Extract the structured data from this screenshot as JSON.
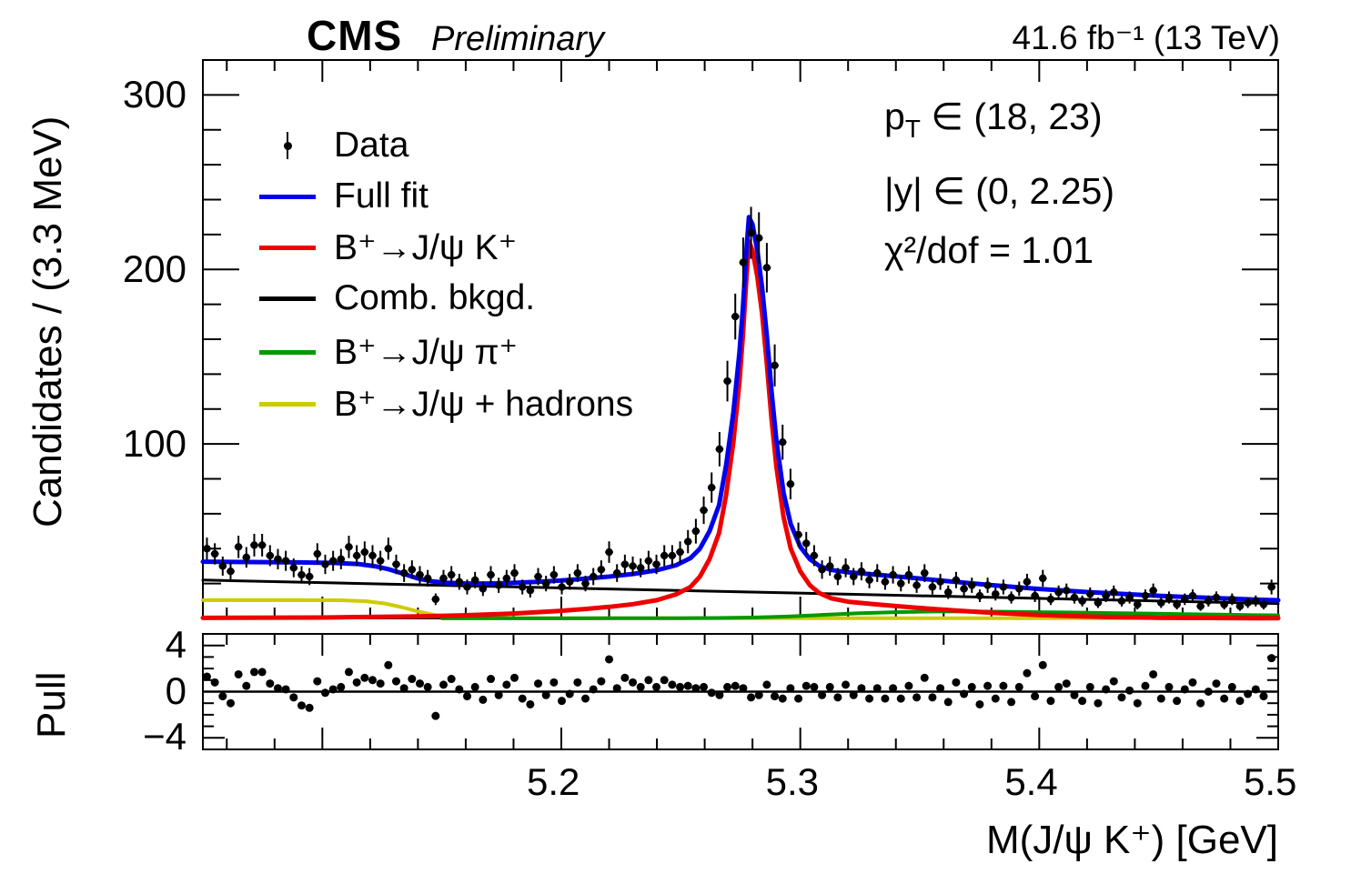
{
  "header": {
    "experiment": "CMS",
    "status": "Preliminary",
    "luminosity": "41.6 fb⁻¹ (13 TeV)"
  },
  "annotations": {
    "pt_prefix": "p",
    "pt_sub": "T",
    "pt_range": " ∈ (18, 23)",
    "rapidity": "|y| ∈ (0, 2.25)",
    "chi2": "χ²/dof = 1.01"
  },
  "legend": [
    {
      "label": "Data",
      "type": "marker",
      "color": "#000000"
    },
    {
      "label": "Full fit",
      "type": "line",
      "color": "#0000ee"
    },
    {
      "label": "B⁺→J/ψ K⁺",
      "type": "line",
      "color": "#ee0000"
    },
    {
      "label": "Comb. bkgd.",
      "type": "line",
      "color": "#000000"
    },
    {
      "label": "B⁺→J/ψ π⁺",
      "type": "line",
      "color": "#009900"
    },
    {
      "label": "B⁺→J/ψ + hadrons",
      "type": "line",
      "color": "#cccc00"
    }
  ],
  "axes": {
    "main_y_label": "Candidates / (3.3 MeV)",
    "main_y_ticks": [
      {
        "v": 100,
        "label": "100"
      },
      {
        "v": 200,
        "label": "200"
      },
      {
        "v": 300,
        "label": "300"
      }
    ],
    "pull_y_label": "Pull",
    "pull_y_ticks": [
      {
        "v": -4,
        "label": "−4"
      },
      {
        "v": 0,
        "label": "0"
      },
      {
        "v": 4,
        "label": "4"
      }
    ],
    "x_ticks": [
      {
        "v": 5.2,
        "label": "5.2"
      },
      {
        "v": 5.3,
        "label": "5.3"
      },
      {
        "v": 5.4,
        "label": "5.4"
      },
      {
        "v": 5.5,
        "label": "5.5"
      }
    ],
    "x_label": "M(J/ψ K⁺) [GeV]"
  },
  "chart_data": {
    "type": "line+scatter",
    "xlabel": "M(J/psi K+) [GeV]",
    "ylabel": "Candidates / (3.3 MeV)",
    "pull_label": "Pull",
    "x_range": [
      5.05,
      5.5
    ],
    "main_ylim": [
      0,
      320
    ],
    "pull_ylim": [
      -5,
      5
    ],
    "x_start": 5.0517,
    "bin_width": 0.0033,
    "data_counts": [
      40,
      37,
      30,
      27,
      41,
      35,
      42,
      42,
      36,
      34,
      33,
      29,
      25,
      24,
      37,
      31,
      33,
      34,
      41,
      36,
      38,
      36,
      33,
      40,
      31,
      26,
      28,
      25,
      23,
      11,
      23,
      25,
      21,
      18,
      22,
      17,
      25,
      19,
      23,
      26,
      18,
      16,
      24,
      20,
      25,
      18,
      21,
      26,
      20,
      24,
      28,
      38,
      26,
      31,
      30,
      29,
      33,
      31,
      36,
      36,
      38,
      44,
      50,
      62,
      75,
      97,
      136,
      173,
      204,
      221,
      218,
      201,
      145,
      101,
      77,
      48,
      43,
      36,
      28,
      30,
      24,
      29,
      24,
      27,
      22,
      26,
      21,
      25,
      20,
      25,
      19,
      26,
      18,
      21,
      15,
      22,
      17,
      19,
      13,
      19,
      14,
      18,
      12,
      17,
      21,
      13,
      23,
      11,
      15,
      16,
      12,
      10,
      14,
      9,
      13,
      15,
      10,
      12,
      8,
      13,
      16,
      9,
      12,
      8,
      11,
      13,
      7,
      10,
      12,
      8,
      11,
      7,
      9,
      10,
      8,
      18
    ],
    "pulls": [
      1.3,
      0.8,
      -0.4,
      -1.0,
      1.5,
      0.5,
      1.7,
      1.7,
      0.7,
      0.3,
      0.2,
      -0.5,
      -1.2,
      -1.4,
      0.9,
      -0.1,
      0.2,
      0.4,
      1.7,
      0.8,
      1.2,
      1.0,
      0.7,
      2.3,
      0.9,
      0.3,
      1.1,
      0.7,
      0.4,
      -2.1,
      0.6,
      1.1,
      0.2,
      -0.4,
      0.4,
      -0.7,
      1.1,
      -0.3,
      0.6,
      1.2,
      -0.6,
      -1.1,
      0.7,
      -0.3,
      0.8,
      -0.8,
      -0.2,
      0.8,
      -0.6,
      0.2,
      0.9,
      2.8,
      0.3,
      1.2,
      0.8,
      0.4,
      1.0,
      0.4,
      1.0,
      0.6,
      0.4,
      0.5,
      0.3,
      0.4,
      -0.1,
      -0.3,
      0.4,
      0.5,
      0.3,
      -0.5,
      -0.3,
      0.6,
      -0.4,
      -0.6,
      0.3,
      -0.6,
      0.5,
      0.4,
      -0.3,
      0.4,
      -0.5,
      0.6,
      -0.3,
      0.3,
      -0.6,
      0.3,
      -0.6,
      0.3,
      -0.6,
      0.5,
      -0.5,
      1.2,
      -0.5,
      0.3,
      -0.9,
      0.8,
      -0.2,
      0.4,
      -1.1,
      0.5,
      -0.6,
      0.5,
      -0.9,
      0.4,
      1.6,
      -0.4,
      2.3,
      -0.8,
      0.4,
      0.7,
      -0.3,
      -0.8,
      0.4,
      -1.0,
      0.2,
      0.9,
      -0.5,
      0.1,
      -1.0,
      0.5,
      1.5,
      -0.6,
      0.4,
      -0.8,
      0.2,
      0.8,
      -1.0,
      0.0,
      0.7,
      -0.6,
      0.4,
      -0.8,
      -0.2,
      0.2,
      -0.4,
      2.9
    ],
    "curves": {
      "full_fit": {
        "name": "Full fit",
        "color": "#0000ee",
        "width": 5,
        "points": [
          [
            5.05,
            32.5
          ],
          [
            5.07,
            32.3
          ],
          [
            5.09,
            32.1
          ],
          [
            5.105,
            31.8
          ],
          [
            5.115,
            31.2
          ],
          [
            5.122,
            29.9
          ],
          [
            5.128,
            28.1
          ],
          [
            5.134,
            25.6
          ],
          [
            5.14,
            22.9
          ],
          [
            5.146,
            21.2
          ],
          [
            5.152,
            20.5
          ],
          [
            5.16,
            20.0
          ],
          [
            5.17,
            20.0
          ],
          [
            5.18,
            20.4
          ],
          [
            5.19,
            21.0
          ],
          [
            5.2,
            21.8
          ],
          [
            5.21,
            22.8
          ],
          [
            5.22,
            24.0
          ],
          [
            5.23,
            25.5
          ],
          [
            5.24,
            27.6
          ],
          [
            5.248,
            30.5
          ],
          [
            5.254,
            34.5
          ],
          [
            5.258,
            40
          ],
          [
            5.262,
            50
          ],
          [
            5.266,
            65
          ],
          [
            5.269,
            88
          ],
          [
            5.272,
            118
          ],
          [
            5.2745,
            152
          ],
          [
            5.276,
            178
          ],
          [
            5.2775,
            212
          ],
          [
            5.2785,
            230
          ],
          [
            5.28,
            226
          ],
          [
            5.282,
            211
          ],
          [
            5.284,
            190
          ],
          [
            5.286,
            162
          ],
          [
            5.288,
            130
          ],
          [
            5.29,
            102
          ],
          [
            5.293,
            72
          ],
          [
            5.296,
            54
          ],
          [
            5.3,
            41
          ],
          [
            5.304,
            34
          ],
          [
            5.308,
            30
          ],
          [
            5.313,
            27.8
          ],
          [
            5.32,
            26.4
          ],
          [
            5.33,
            25.3
          ],
          [
            5.34,
            24.1
          ],
          [
            5.35,
            22.9
          ],
          [
            5.36,
            21.6
          ],
          [
            5.37,
            20.3
          ],
          [
            5.38,
            19.1
          ],
          [
            5.39,
            18.0
          ],
          [
            5.4,
            16.9
          ],
          [
            5.41,
            16.0
          ],
          [
            5.42,
            15.1
          ],
          [
            5.43,
            14.4
          ],
          [
            5.44,
            13.7
          ],
          [
            5.45,
            13.0
          ],
          [
            5.46,
            12.4
          ],
          [
            5.47,
            11.9
          ],
          [
            5.48,
            11.3
          ],
          [
            5.49,
            10.8
          ],
          [
            5.5,
            10.4
          ]
        ]
      },
      "signal": {
        "name": "B+ -> J/psi K+",
        "color": "#ee0000",
        "width": 5,
        "points": [
          [
            5.05,
            0.3
          ],
          [
            5.1,
            0.5
          ],
          [
            5.14,
            1.2
          ],
          [
            5.16,
            1.8
          ],
          [
            5.18,
            2.8
          ],
          [
            5.2,
            4.4
          ],
          [
            5.21,
            5.4
          ],
          [
            5.22,
            6.6
          ],
          [
            5.23,
            8.2
          ],
          [
            5.24,
            10.5
          ],
          [
            5.248,
            13.8
          ],
          [
            5.254,
            18
          ],
          [
            5.258,
            24
          ],
          [
            5.262,
            34
          ],
          [
            5.266,
            49
          ],
          [
            5.269,
            71
          ],
          [
            5.272,
            101
          ],
          [
            5.2745,
            135
          ],
          [
            5.276,
            162
          ],
          [
            5.2775,
            196
          ],
          [
            5.2785,
            216
          ],
          [
            5.28,
            211
          ],
          [
            5.282,
            196
          ],
          [
            5.284,
            175
          ],
          [
            5.286,
            146
          ],
          [
            5.288,
            114
          ],
          [
            5.29,
            87
          ],
          [
            5.293,
            58
          ],
          [
            5.296,
            40
          ],
          [
            5.3,
            27
          ],
          [
            5.304,
            19
          ],
          [
            5.308,
            14.5
          ],
          [
            5.313,
            11.5
          ],
          [
            5.32,
            9.6
          ],
          [
            5.33,
            8.3
          ],
          [
            5.34,
            7.1
          ],
          [
            5.35,
            6.0
          ],
          [
            5.36,
            5.0
          ],
          [
            5.37,
            4.1
          ],
          [
            5.38,
            3.3
          ],
          [
            5.39,
            2.6
          ],
          [
            5.4,
            2.0
          ],
          [
            5.41,
            1.5
          ],
          [
            5.42,
            1.1
          ],
          [
            5.43,
            0.8
          ],
          [
            5.44,
            0.6
          ],
          [
            5.45,
            0.4
          ],
          [
            5.46,
            0.3
          ],
          [
            5.47,
            0.25
          ],
          [
            5.48,
            0.2
          ],
          [
            5.49,
            0.18
          ],
          [
            5.5,
            0.15
          ]
        ]
      },
      "comb_bkgd": {
        "name": "Comb. bkgd.",
        "color": "#000000",
        "width": 3,
        "points": [
          [
            5.05,
            22
          ],
          [
            5.5,
            8.5
          ]
        ]
      },
      "jpsi_pi": {
        "name": "B+ -> J/psi pi+",
        "color": "#009900",
        "width": 4,
        "points": [
          [
            5.15,
            0.05
          ],
          [
            5.22,
            0.08
          ],
          [
            5.25,
            0.15
          ],
          [
            5.265,
            0.25
          ],
          [
            5.28,
            0.5
          ],
          [
            5.295,
            1.1
          ],
          [
            5.31,
            2.1
          ],
          [
            5.325,
            3.0
          ],
          [
            5.34,
            3.6
          ],
          [
            5.355,
            3.95
          ],
          [
            5.37,
            4.0
          ],
          [
            5.385,
            3.85
          ],
          [
            5.4,
            3.6
          ],
          [
            5.415,
            3.4
          ],
          [
            5.43,
            3.1
          ],
          [
            5.445,
            2.8
          ],
          [
            5.46,
            2.5
          ],
          [
            5.475,
            2.2
          ],
          [
            5.49,
            1.9
          ],
          [
            5.5,
            1.75
          ]
        ]
      },
      "jpsi_hadrons": {
        "name": "B+ -> J/psi + hadrons",
        "color": "#cccc00",
        "width": 4,
        "points": [
          [
            5.05,
            10.5
          ],
          [
            5.095,
            10.5
          ],
          [
            5.108,
            10.4
          ],
          [
            5.118,
            9.9
          ],
          [
            5.126,
            8.6
          ],
          [
            5.133,
            6.5
          ],
          [
            5.14,
            4.0
          ],
          [
            5.147,
            2.0
          ],
          [
            5.154,
            0.9
          ],
          [
            5.162,
            0.45
          ],
          [
            5.172,
            0.25
          ],
          [
            5.19,
            0.18
          ],
          [
            5.25,
            0.15
          ],
          [
            5.35,
            0.15
          ],
          [
            5.5,
            0.15
          ]
        ]
      }
    },
    "legend_position": "upper left",
    "grid": false
  }
}
